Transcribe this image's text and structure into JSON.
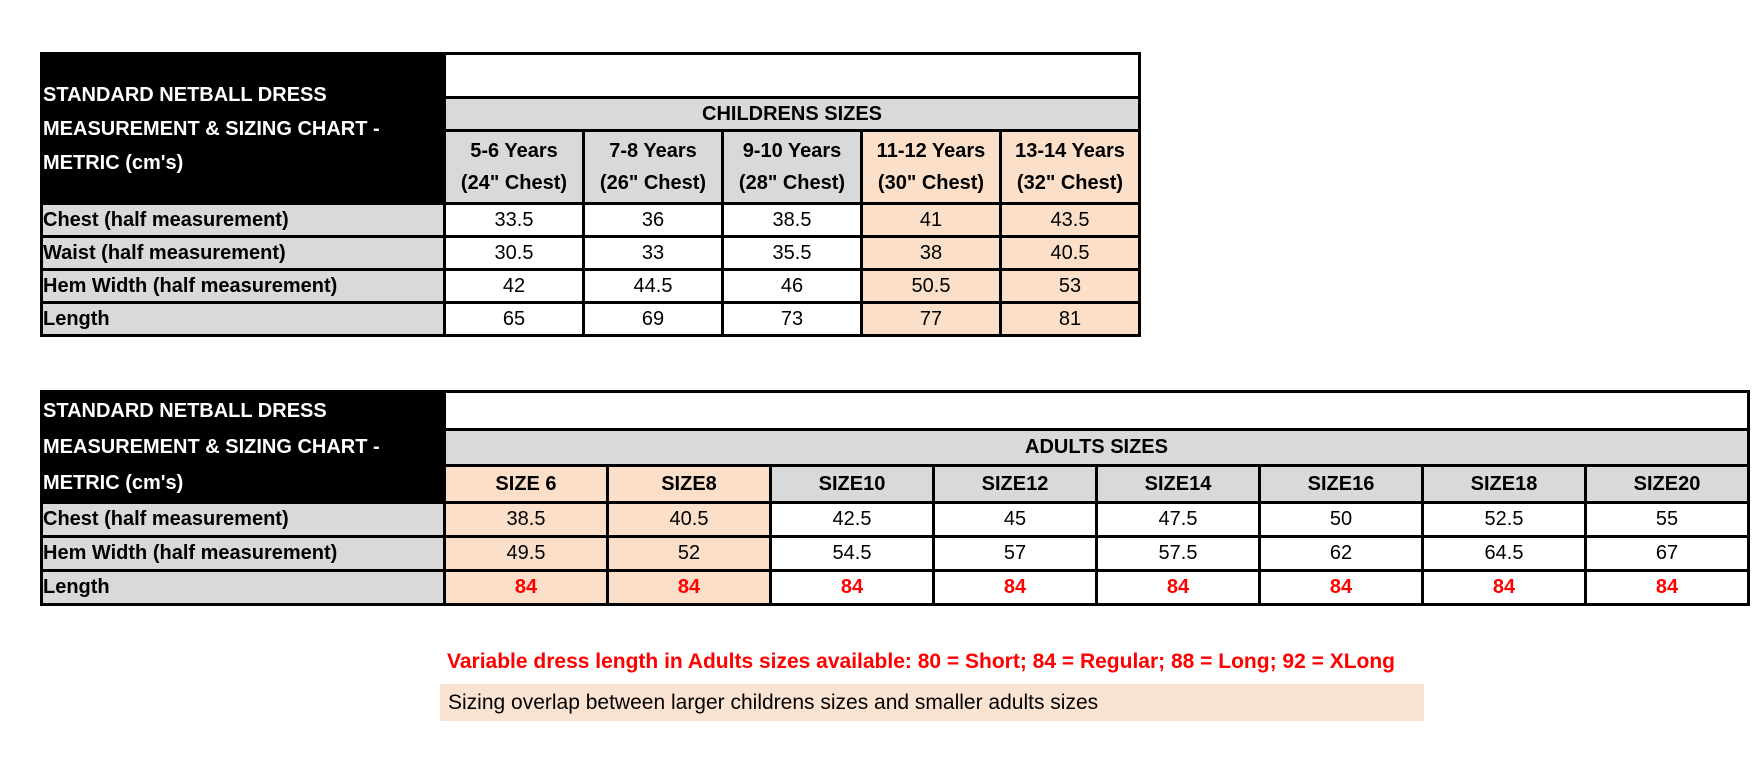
{
  "page": {
    "background": "#ffffff"
  },
  "colors": {
    "title_bg": "#000000",
    "title_text": "#ffffff",
    "table_header_bg": "#d9d9d9",
    "highlight_bg": "#fbdfc8",
    "footer_highlight_bg": "#fbe3d2",
    "red_text": "#ff0000",
    "border": "#000000"
  },
  "chart_data": [
    {
      "type": "table",
      "title": "STANDARD NETBALL DRESS MEASUREMENT & SIZING CHART - METRIC (cm's)",
      "title_lines": [
        "STANDARD NETBALL DRESS",
        "MEASUREMENT & SIZING CHART -",
        "METRIC (cm's)"
      ],
      "group_header": "CHILDRENS SIZES",
      "unit": "cm",
      "columns": [
        {
          "label": "5-6 Years",
          "sublabel": "(24\" Chest)",
          "highlighted": false
        },
        {
          "label": "7-8 Years",
          "sublabel": "(26\" Chest)",
          "highlighted": false
        },
        {
          "label": "9-10 Years",
          "sublabel": "(28\" Chest)",
          "highlighted": false
        },
        {
          "label": "11-12 Years",
          "sublabel": "(30\" Chest)",
          "highlighted": true
        },
        {
          "label": "13-14 Years",
          "sublabel": "(32\" Chest)",
          "highlighted": true
        }
      ],
      "rows": [
        {
          "label": "Chest (half measurement)",
          "values": [
            33.5,
            36,
            38.5,
            41,
            43.5
          ],
          "red_values": false
        },
        {
          "label": "Waist (half measurement)",
          "values": [
            30.5,
            33,
            35.5,
            38,
            40.5
          ],
          "red_values": false
        },
        {
          "label": "Hem Width (half measurement)",
          "values": [
            42,
            44.5,
            46,
            50.5,
            53
          ],
          "red_values": false
        },
        {
          "label": "Length",
          "values": [
            65,
            69,
            73,
            77,
            81
          ],
          "red_values": false
        }
      ]
    },
    {
      "type": "table",
      "title": "STANDARD NETBALL DRESS MEASUREMENT & SIZING CHART - METRIC (cm's)",
      "title_lines": [
        "STANDARD NETBALL DRESS",
        "MEASUREMENT & SIZING CHART -",
        "METRIC (cm's)"
      ],
      "group_header": "ADULTS SIZES",
      "unit": "cm",
      "columns": [
        {
          "label": "SIZE 6",
          "sublabel": "",
          "highlighted": true
        },
        {
          "label": "SIZE8",
          "sublabel": "",
          "highlighted": true
        },
        {
          "label": "SIZE10",
          "sublabel": "",
          "highlighted": false
        },
        {
          "label": "SIZE12",
          "sublabel": "",
          "highlighted": false
        },
        {
          "label": "SIZE14",
          "sublabel": "",
          "highlighted": false
        },
        {
          "label": "SIZE16",
          "sublabel": "",
          "highlighted": false
        },
        {
          "label": "SIZE18",
          "sublabel": "",
          "highlighted": false
        },
        {
          "label": "SIZE20",
          "sublabel": "",
          "highlighted": false
        }
      ],
      "rows": [
        {
          "label": "Chest (half measurement)",
          "values": [
            38.5,
            40.5,
            42.5,
            45,
            47.5,
            50,
            52.5,
            55
          ],
          "red_values": false
        },
        {
          "label": "Hem Width (half measurement)",
          "values": [
            49.5,
            52,
            54.5,
            57,
            57.5,
            62,
            64.5,
            67
          ],
          "red_values": false
        },
        {
          "label": "Length",
          "values": [
            84,
            84,
            84,
            84,
            84,
            84,
            84,
            84
          ],
          "red_values": true
        }
      ]
    }
  ],
  "footer": {
    "note_red": "Variable dress length in Adults sizes available: 80 = Short; 84 = Regular; 88 = Long; 92 = XLong",
    "note_overlap": "Sizing overlap between larger childrens sizes and smaller adults sizes"
  }
}
